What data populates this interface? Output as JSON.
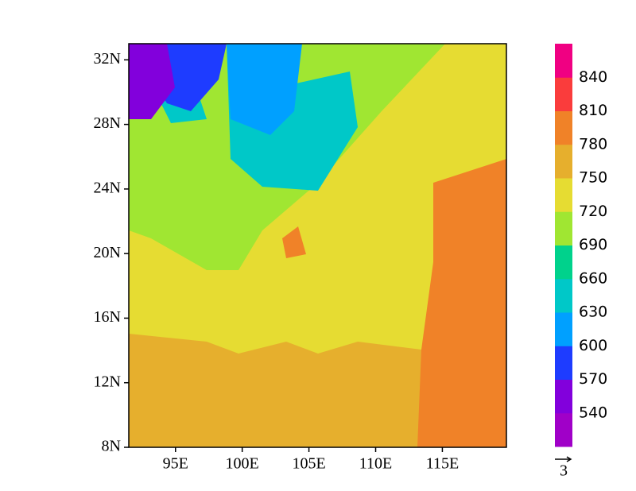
{
  "chart_data": {
    "type": "contour",
    "xlim": [
      91.5,
      119.8
    ],
    "ylim": [
      8,
      33
    ],
    "xticks": [
      {
        "value": 95,
        "label": "95E"
      },
      {
        "value": 100,
        "label": "100E"
      },
      {
        "value": 105,
        "label": "105E"
      },
      {
        "value": 110,
        "label": "110E"
      },
      {
        "value": 115,
        "label": "115E"
      }
    ],
    "yticks": [
      {
        "value": 8,
        "label": "8N"
      },
      {
        "value": 12,
        "label": "12N"
      },
      {
        "value": 16,
        "label": "16N"
      },
      {
        "value": 20,
        "label": "20N"
      },
      {
        "value": 24,
        "label": "24N"
      },
      {
        "value": 28,
        "label": "28N"
      },
      {
        "value": 32,
        "label": "32N"
      }
    ],
    "colorbar": {
      "levels": [
        540,
        570,
        600,
        630,
        660,
        690,
        720,
        750,
        780,
        810,
        840
      ],
      "colors": [
        "#a000c8",
        "#8200dc",
        "#1e3cff",
        "#00a0ff",
        "#00c8c8",
        "#00d28c",
        "#a0e632",
        "#e6dc32",
        "#e6af2d",
        "#f08228",
        "#fa3c3c",
        "#f00082"
      ]
    },
    "vector_reference": 3
  }
}
